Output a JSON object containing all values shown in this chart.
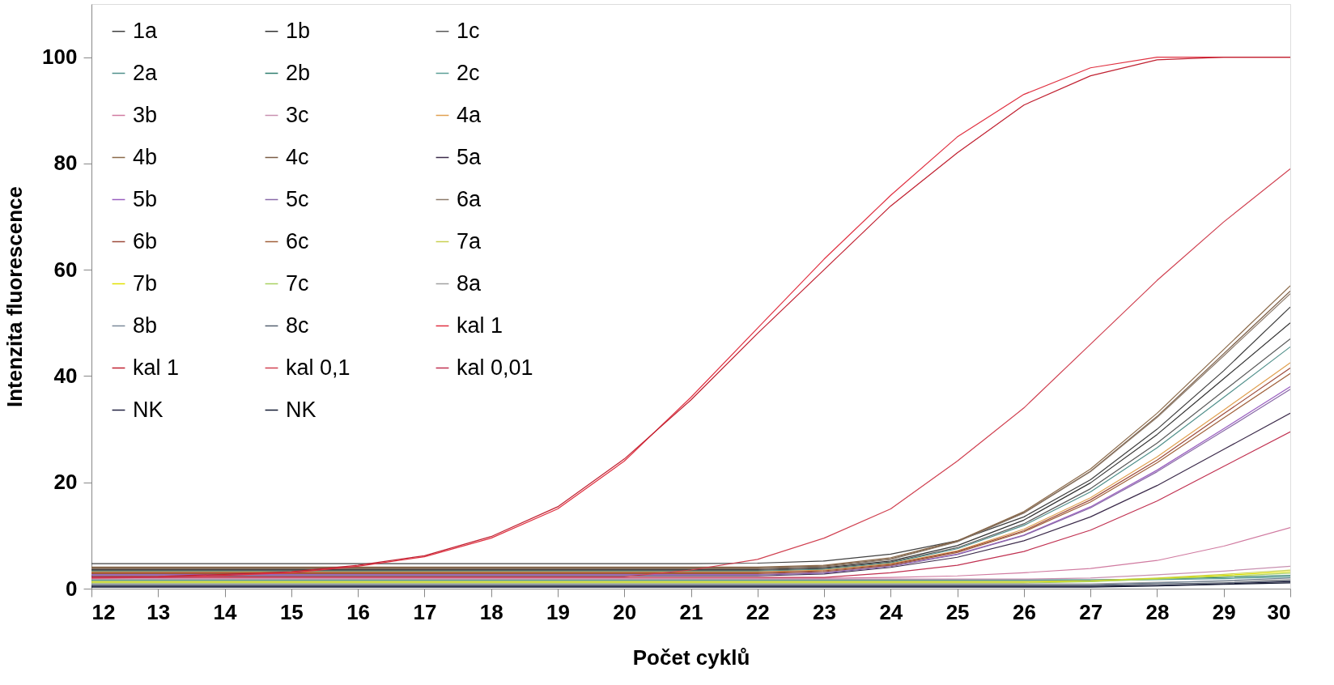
{
  "chart_data": {
    "type": "line",
    "xlabel": "Počet cyklů",
    "ylabel": "Intenzita fluorescence",
    "x": [
      12,
      13,
      14,
      15,
      16,
      17,
      18,
      19,
      20,
      21,
      22,
      23,
      24,
      25,
      26,
      27,
      28,
      29,
      30
    ],
    "xlim": [
      12,
      30
    ],
    "xticks": [
      12,
      13,
      14,
      15,
      16,
      17,
      18,
      19,
      20,
      21,
      22,
      23,
      24,
      25,
      26,
      27,
      28,
      29,
      30
    ],
    "ylim": [
      0,
      110
    ],
    "yticks": [
      0,
      20,
      40,
      60,
      80,
      100
    ],
    "grid": false,
    "legend": "top left",
    "marker": "none",
    "line_style": "solid",
    "series": [
      {
        "name": "1a",
        "color": "#404040",
        "values": [
          4.7,
          4.7,
          4.7,
          4.7,
          4.7,
          4.7,
          4.7,
          4.7,
          4.7,
          4.7,
          4.8,
          5.2,
          6.5,
          9.0,
          13.5,
          20.5,
          30.0,
          41.0,
          53.0
        ]
      },
      {
        "name": "1b",
        "color": "#333333",
        "values": [
          3.6,
          3.6,
          3.6,
          3.6,
          3.6,
          3.6,
          3.6,
          3.6,
          3.6,
          3.6,
          3.6,
          3.95,
          5.2,
          8.1,
          12.9,
          19.9,
          29.0,
          39.5,
          50.0
        ]
      },
      {
        "name": "1c",
        "color": "#595959",
        "values": [
          3.45,
          3.45,
          3.45,
          3.45,
          3.45,
          3.45,
          3.45,
          3.45,
          3.45,
          3.45,
          3.45,
          3.8,
          5.0,
          7.7,
          12.2,
          18.8,
          27.4,
          37.2,
          47.0
        ]
      },
      {
        "name": "2a",
        "color": "#4f8f8a",
        "values": [
          3.3,
          3.3,
          3.3,
          3.3,
          3.3,
          3.3,
          3.3,
          3.3,
          3.3,
          3.3,
          3.3,
          3.65,
          4.85,
          7.5,
          11.9,
          18.2,
          26.5,
          36.0,
          45.5
        ]
      },
      {
        "name": "2b",
        "color": "#2e7d6e",
        "values": [
          1.65,
          1.65,
          1.65,
          1.65,
          1.65,
          1.65,
          1.65,
          1.65,
          1.65,
          1.65,
          1.65,
          1.65,
          1.65,
          1.65,
          1.65,
          1.65,
          1.8,
          2.1,
          2.5
        ]
      },
      {
        "name": "2c",
        "color": "#5a9e96",
        "values": [
          1.5,
          1.5,
          1.5,
          1.5,
          1.5,
          1.5,
          1.5,
          1.5,
          1.5,
          1.5,
          1.5,
          1.5,
          1.5,
          1.5,
          1.5,
          1.5,
          1.7,
          1.9,
          2.2
        ]
      },
      {
        "name": "3b",
        "color": "#d07aa0",
        "values": [
          1.95,
          1.95,
          1.95,
          1.95,
          1.95,
          1.95,
          1.95,
          1.95,
          1.95,
          1.95,
          1.95,
          1.95,
          2.1,
          2.4,
          3.0,
          3.8,
          5.3,
          8.0,
          11.5
        ]
      },
      {
        "name": "3c",
        "color": "#c890b0",
        "values": [
          1.8,
          1.8,
          1.8,
          1.8,
          1.8,
          1.8,
          1.8,
          1.8,
          1.8,
          1.8,
          1.8,
          1.8,
          1.8,
          1.8,
          1.8,
          2.0,
          2.6,
          3.3,
          4.2
        ]
      },
      {
        "name": "4a",
        "color": "#e0a050",
        "values": [
          3.15,
          3.15,
          3.15,
          3.15,
          3.15,
          3.15,
          3.15,
          3.15,
          3.15,
          3.15,
          3.15,
          3.5,
          4.7,
          7.1,
          11.2,
          17.1,
          24.8,
          33.6,
          42.5
        ]
      },
      {
        "name": "4b",
        "color": "#8b6a4a",
        "values": [
          4.05,
          4.05,
          4.05,
          4.05,
          4.05,
          4.05,
          4.05,
          4.05,
          4.05,
          4.05,
          4.05,
          4.4,
          5.8,
          9.0,
          14.5,
          22.5,
          33.0,
          45.0,
          57.0
        ]
      },
      {
        "name": "4c",
        "color": "#7a5c44",
        "values": [
          3.9,
          3.9,
          3.9,
          3.9,
          3.9,
          3.9,
          3.9,
          3.9,
          3.9,
          3.9,
          3.9,
          4.25,
          5.6,
          8.9,
          14.3,
          22.1,
          32.4,
          44.2,
          56.0
        ]
      },
      {
        "name": "5a",
        "color": "#3b2a4a",
        "values": [
          2.4,
          2.4,
          2.4,
          2.4,
          2.4,
          2.4,
          2.4,
          2.4,
          2.4,
          2.4,
          2.4,
          2.75,
          4.0,
          5.9,
          9.0,
          13.5,
          19.4,
          26.2,
          33.0
        ]
      },
      {
        "name": "5b",
        "color": "#9a5fc0",
        "values": [
          2.7,
          2.7,
          2.7,
          2.7,
          2.7,
          2.7,
          2.7,
          2.7,
          2.7,
          2.7,
          2.7,
          3.05,
          4.3,
          6.5,
          10.1,
          15.4,
          22.3,
          30.1,
          38.0
        ]
      },
      {
        "name": "5c",
        "color": "#8a6aa8",
        "values": [
          2.55,
          2.55,
          2.55,
          2.55,
          2.55,
          2.55,
          2.55,
          2.55,
          2.55,
          2.55,
          2.55,
          2.9,
          4.15,
          6.4,
          10.0,
          15.2,
          22.0,
          29.7,
          37.5
        ]
      },
      {
        "name": "6a",
        "color": "#8c7a6a",
        "values": [
          3.75,
          3.75,
          3.75,
          3.75,
          3.75,
          3.75,
          3.75,
          3.75,
          3.75,
          3.75,
          3.75,
          4.1,
          5.5,
          8.8,
          14.2,
          22.0,
          32.2,
          43.8,
          55.5
        ]
      },
      {
        "name": "6b",
        "color": "#9c4a3a",
        "values": [
          3.0,
          3.0,
          3.0,
          3.0,
          3.0,
          3.0,
          3.0,
          3.0,
          3.0,
          3.0,
          3.0,
          3.35,
          4.55,
          7.0,
          10.9,
          16.7,
          24.2,
          32.9,
          41.5
        ]
      },
      {
        "name": "6c",
        "color": "#a0603a",
        "values": [
          2.85,
          2.85,
          2.85,
          2.85,
          2.85,
          2.85,
          2.85,
          2.85,
          2.85,
          2.85,
          2.85,
          3.2,
          4.4,
          6.8,
          10.7,
          16.3,
          23.7,
          32.1,
          40.5
        ]
      },
      {
        "name": "7a",
        "color": "#c8d050",
        "values": [
          1.35,
          1.35,
          1.35,
          1.35,
          1.35,
          1.35,
          1.35,
          1.35,
          1.35,
          1.35,
          1.35,
          1.35,
          1.35,
          1.35,
          1.35,
          1.5,
          2.0,
          2.7,
          3.5
        ]
      },
      {
        "name": "7b",
        "color": "#e0e000",
        "values": [
          1.2,
          1.2,
          1.2,
          1.2,
          1.2,
          1.2,
          1.2,
          1.2,
          1.2,
          1.2,
          1.2,
          1.2,
          1.2,
          1.2,
          1.2,
          1.4,
          1.9,
          2.5,
          3.2
        ]
      },
      {
        "name": "7c",
        "color": "#a8d060",
        "values": [
          1.05,
          1.05,
          1.05,
          1.05,
          1.05,
          1.05,
          1.05,
          1.05,
          1.05,
          1.05,
          1.05,
          1.05,
          1.05,
          1.05,
          1.05,
          1.3,
          1.8,
          2.3,
          2.9
        ]
      },
      {
        "name": "8a",
        "color": "#a0a0a0",
        "values": [
          0.9,
          0.9,
          0.9,
          0.9,
          0.9,
          0.9,
          0.9,
          0.9,
          0.9,
          0.9,
          0.9,
          0.9,
          0.9,
          0.9,
          0.9,
          0.9,
          1.2,
          1.4,
          1.7
        ]
      },
      {
        "name": "8b",
        "color": "#7a8a9a",
        "values": [
          0.75,
          0.75,
          0.75,
          0.75,
          0.75,
          0.75,
          0.75,
          0.75,
          0.75,
          0.75,
          0.75,
          0.75,
          0.75,
          0.75,
          0.75,
          0.75,
          1.1,
          1.5,
          2.0
        ]
      },
      {
        "name": "8c",
        "color": "#556070",
        "values": [
          0.6,
          0.6,
          0.6,
          0.6,
          0.6,
          0.6,
          0.6,
          0.6,
          0.6,
          0.6,
          0.6,
          0.6,
          0.6,
          0.6,
          0.6,
          0.6,
          0.9,
          1.1,
          1.5
        ]
      },
      {
        "name": "kal 1",
        "color": "#e03040",
        "values": [
          2.0,
          2.1,
          2.5,
          3.0,
          4.2,
          6.0,
          9.5,
          15.0,
          24.0,
          36.0,
          49.0,
          62.0,
          74.0,
          85.0,
          93.0,
          98.0,
          100.0,
          100.0,
          100.0
        ]
      },
      {
        "name": "kal 1",
        "color": "#c02030",
        "values": [
          2.2,
          2.3,
          2.7,
          3.2,
          4.4,
          6.2,
          9.8,
          15.4,
          24.4,
          35.5,
          48.0,
          60.0,
          72.0,
          82.0,
          91.0,
          96.5,
          99.5,
          100.0,
          100.0
        ]
      },
      {
        "name": "kal 0,1",
        "color": "#d04050",
        "values": [
          2.25,
          2.25,
          2.25,
          2.25,
          2.25,
          2.25,
          2.25,
          2.25,
          2.25,
          3.5,
          5.5,
          9.5,
          15.0,
          24.0,
          34.0,
          46.0,
          58.0,
          69.0,
          79.0
        ]
      },
      {
        "name": "kal 0,01",
        "color": "#c03050",
        "values": [
          2.1,
          2.1,
          2.1,
          2.1,
          2.1,
          2.1,
          2.1,
          2.1,
          2.1,
          2.1,
          2.1,
          2.1,
          3.0,
          4.4,
          7.0,
          11.0,
          16.5,
          23.0,
          29.5
        ]
      },
      {
        "name": "NK",
        "color": "#202040",
        "values": [
          0.45,
          0.45,
          0.45,
          0.45,
          0.45,
          0.45,
          0.45,
          0.45,
          0.45,
          0.45,
          0.45,
          0.45,
          0.45,
          0.45,
          0.45,
          0.45,
          0.6,
          0.9,
          1.3
        ]
      },
      {
        "name": "NK",
        "color": "#101830",
        "values": [
          0.3,
          0.3,
          0.3,
          0.3,
          0.3,
          0.3,
          0.3,
          0.3,
          0.3,
          0.3,
          0.3,
          0.3,
          0.3,
          0.3,
          0.3,
          0.3,
          0.5,
          0.8,
          1.1
        ]
      }
    ]
  }
}
